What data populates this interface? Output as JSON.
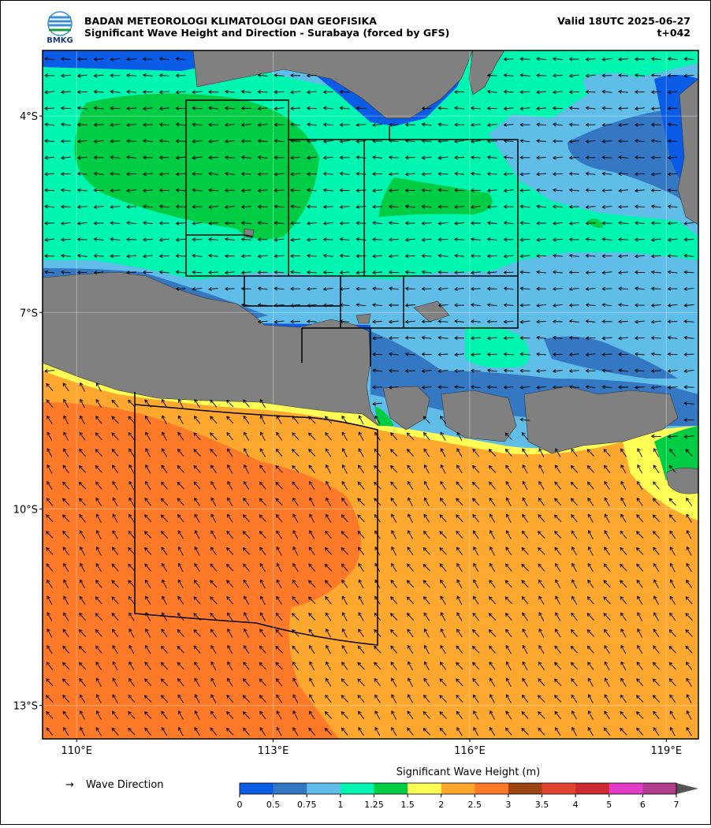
{
  "header": {
    "logo": "BMKG",
    "agency": "BADAN METEOROLOGI KLIMATOLOGI DAN GEOFISIKA",
    "title": "Significant Wave Height and Direction - Surabaya (forced by GFS)",
    "valid": "Valid 18UTC 2025-06-27",
    "lead": "t+042"
  },
  "map": {
    "xlim": [
      109.48,
      119.49
    ],
    "ylim": [
      -13.51,
      -3.0
    ],
    "xticks": [
      {
        "value": 110,
        "label": "110°E"
      },
      {
        "value": 113,
        "label": "113°E"
      },
      {
        "value": 116,
        "label": "116°E"
      },
      {
        "value": 119,
        "label": "119°E"
      }
    ],
    "yticks": [
      {
        "value": -4,
        "label": "4°S"
      },
      {
        "value": -7,
        "label": "7°S"
      },
      {
        "value": -10,
        "label": "10°S"
      },
      {
        "value": -13,
        "label": "13°S"
      }
    ],
    "grid": true
  },
  "legend": {
    "arrow": "→",
    "arrow_label": "Wave Direction"
  },
  "colorbar": {
    "label": "Significant Wave Height (m)",
    "bounds": [
      0,
      0.5,
      0.75,
      1,
      1.25,
      1.5,
      2,
      2.5,
      3,
      3.5,
      4,
      5,
      6,
      7
    ],
    "colors": [
      "#0a5ce6",
      "#3478c4",
      "#5fbde8",
      "#00f5b0",
      "#00cc44",
      "#ffff55",
      "#ffa830",
      "#ff7a28",
      "#9c4414",
      "#e0442e",
      "#cc2a30",
      "#e23cc8",
      "#b03c8c"
    ],
    "extend_color": "#555555"
  }
}
